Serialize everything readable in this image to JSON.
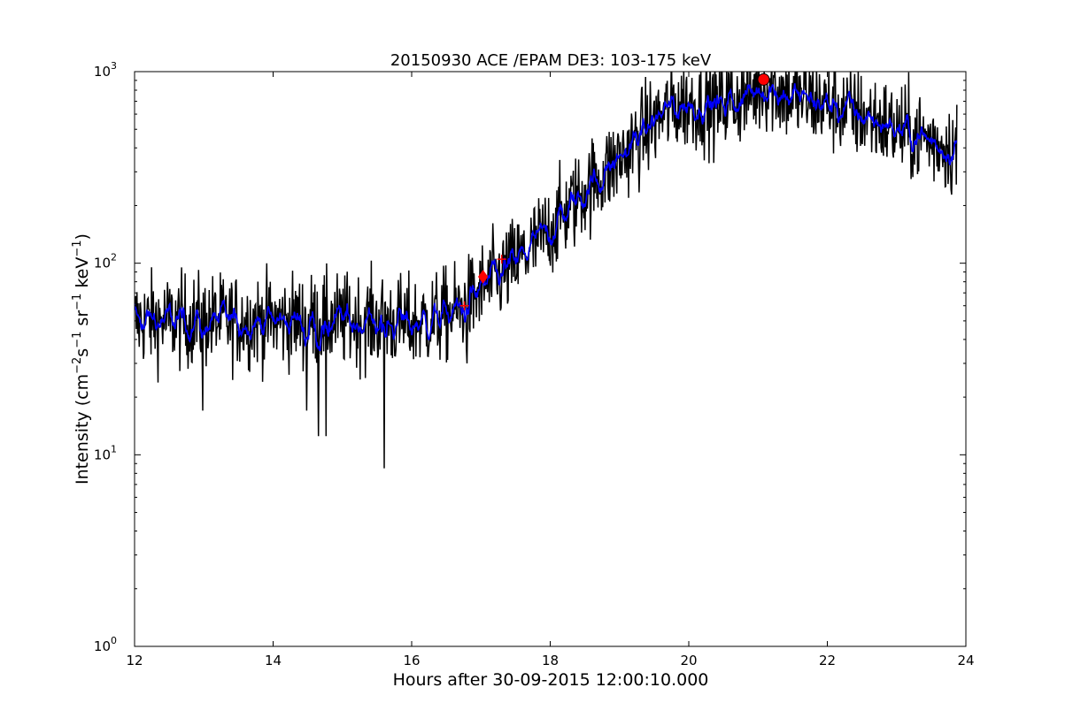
{
  "chart_data": {
    "type": "line",
    "title": "20150930 ACE /EPAM DE3: 103-175 keV",
    "xlabel": "Hours after 30-09-2015 12:00:10.000",
    "ylabel": {
      "prefix": "Intensity (cm",
      "exp1": "−2",
      "mid1": "s",
      "exp2": "−1",
      "mid2": " sr",
      "exp3": "−1",
      "mid3": " keV",
      "exp4": "−1",
      "suffix": ")"
    },
    "xlim": [
      12,
      24
    ],
    "ylim": [
      1,
      1000
    ],
    "yscale": "log",
    "grid": false,
    "x_ticks": [
      12,
      14,
      16,
      18,
      20,
      22,
      24
    ],
    "x_tick_labels": [
      "12",
      "14",
      "16",
      "18",
      "20",
      "22",
      "24"
    ],
    "y_ticks": [
      {
        "value": 1,
        "base": "10",
        "exp": "0"
      },
      {
        "value": 10,
        "base": "10",
        "exp": "1"
      },
      {
        "value": 100,
        "base": "10",
        "exp": "2"
      },
      {
        "value": 1000,
        "base": "10",
        "exp": "3"
      }
    ],
    "colors": {
      "raw": "#000000",
      "smoothed": "#0000ff",
      "marker": "#ff0000"
    },
    "x_range": [
      12.0,
      23.87
    ],
    "trend": {
      "x": [
        12.0,
        13.0,
        14.0,
        15.0,
        15.6,
        16.0,
        16.4,
        16.75,
        17.0,
        17.3,
        17.6,
        18.0,
        18.5,
        19.0,
        19.5,
        19.75,
        20.0,
        20.3,
        20.6,
        20.9,
        21.1,
        21.4,
        21.8,
        22.2,
        22.6,
        23.0,
        23.4,
        23.87
      ],
      "y": [
        50,
        50,
        50,
        50,
        50,
        48,
        52,
        58,
        72,
        88,
        108,
        150,
        240,
        350,
        550,
        650,
        680,
        670,
        700,
        760,
        860,
        760,
        700,
        640,
        580,
        500,
        450,
        390
      ]
    },
    "raw_noise_fraction": 0.28,
    "smoothed_noise_fraction": 0.1,
    "raw_spikes": [
      {
        "x": 12.98,
        "y": 17
      },
      {
        "x": 14.48,
        "y": 17
      },
      {
        "x": 14.65,
        "y": 12.5
      },
      {
        "x": 14.76,
        "y": 12.5
      },
      {
        "x": 15.6,
        "y": 8.5
      },
      {
        "x": 16.8,
        "y": 30
      },
      {
        "x": 20.42,
        "y": 480
      }
    ],
    "markers": [
      {
        "x": 16.76,
        "y": 60,
        "style": "cross"
      },
      {
        "x": 17.03,
        "y": 85,
        "style": "diamond"
      },
      {
        "x": 17.3,
        "y": 105,
        "style": "cross"
      },
      {
        "x": 21.08,
        "y": 910,
        "style": "circle"
      }
    ]
  }
}
